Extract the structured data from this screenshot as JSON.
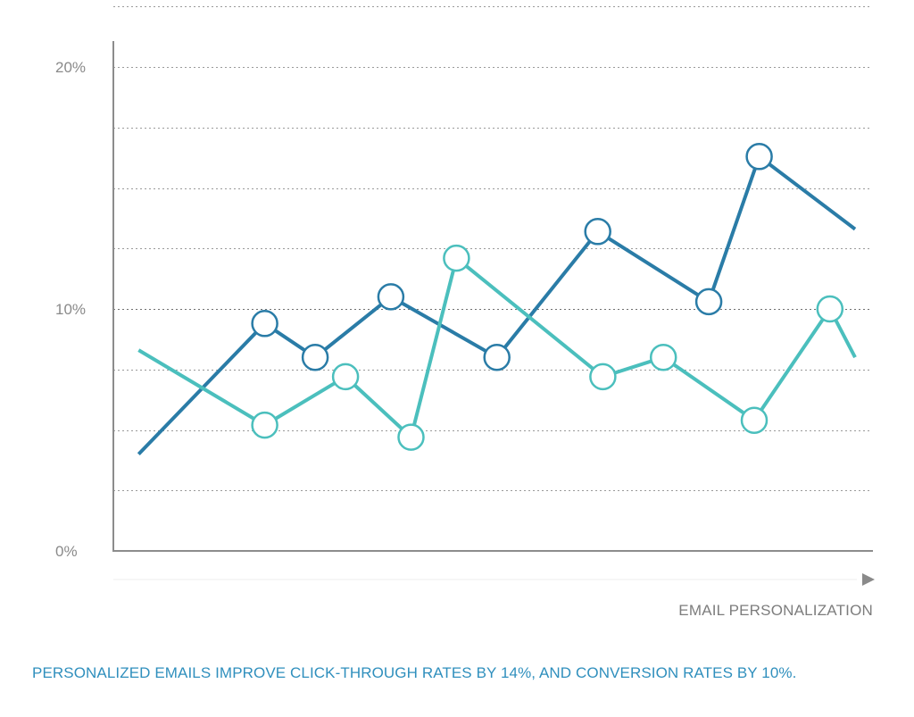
{
  "chart_data": {
    "type": "line",
    "title": "",
    "xlabel": "EMAIL PERSONALIZATION",
    "ylabel": "",
    "ylim": [
      0,
      20
    ],
    "xlim": [
      0,
      15
    ],
    "y_ticks": [
      {
        "value": 0,
        "label": "0%"
      },
      {
        "value": 10,
        "label": "10%"
      },
      {
        "value": 20,
        "label": "20%"
      }
    ],
    "grid": true,
    "legend": "none",
    "series": [
      {
        "color": "#2a7ca7",
        "points": [
          {
            "x": 0.5,
            "y": 4.0,
            "marker": false
          },
          {
            "x": 3.0,
            "y": 9.4,
            "marker": true
          },
          {
            "x": 4.0,
            "y": 8.0,
            "marker": true
          },
          {
            "x": 5.5,
            "y": 10.5,
            "marker": true
          },
          {
            "x": 7.6,
            "y": 8.0,
            "marker": true
          },
          {
            "x": 9.6,
            "y": 13.2,
            "marker": true
          },
          {
            "x": 11.8,
            "y": 10.3,
            "marker": true
          },
          {
            "x": 12.8,
            "y": 16.3,
            "marker": true
          },
          {
            "x": 14.7,
            "y": 13.3,
            "marker": false
          }
        ]
      },
      {
        "color": "#4bbfbd",
        "points": [
          {
            "x": 0.5,
            "y": 8.3,
            "marker": false
          },
          {
            "x": 3.0,
            "y": 5.2,
            "marker": true
          },
          {
            "x": 4.6,
            "y": 7.2,
            "marker": true
          },
          {
            "x": 5.9,
            "y": 4.7,
            "marker": true
          },
          {
            "x": 6.8,
            "y": 12.1,
            "marker": true
          },
          {
            "x": 9.7,
            "y": 7.2,
            "marker": true
          },
          {
            "x": 10.9,
            "y": 8.0,
            "marker": true
          },
          {
            "x": 12.7,
            "y": 5.4,
            "marker": true
          },
          {
            "x": 14.2,
            "y": 10.0,
            "marker": true
          },
          {
            "x": 14.7,
            "y": 8.0,
            "marker": false
          }
        ]
      }
    ]
  },
  "caption": "PERSONALIZED EMAILS IMPROVE CLICK-THROUGH RATES BY 14%, AND CONVERSION RATES BY 10%.",
  "colors": {
    "axis": "#8c8c8c",
    "grid": "#9a9a9a",
    "caption": "#2f8fbd"
  }
}
